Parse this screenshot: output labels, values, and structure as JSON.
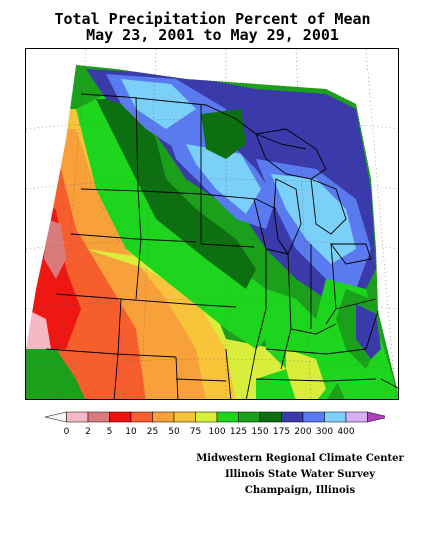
{
  "title": {
    "line1": "Total Precipitation Percent of Mean",
    "line2": "May 23, 2001 to May 29, 2001"
  },
  "legend": {
    "labels": [
      "0",
      "2",
      "5",
      "10",
      "25",
      "50",
      "75",
      "100",
      "125",
      "150",
      "175",
      "200",
      "300",
      "400"
    ],
    "colors": [
      "#f6f6f6",
      "#f7b8c6",
      "#d97a7c",
      "#ee0f0f",
      "#f65e2e",
      "#f8a13a",
      "#f8c43a",
      "#d9ee3a",
      "#1ed51e",
      "#1aa01a",
      "#0c7010",
      "#3a3aaa",
      "#5a7af0",
      "#7ad0f8",
      "#d8b0f8",
      "#b040c0"
    ]
  },
  "credits": {
    "line1": "Midwestern Regional Climate Center",
    "line2": "Illinois State Water Survey",
    "line3": "Champaign, Illinois"
  }
}
